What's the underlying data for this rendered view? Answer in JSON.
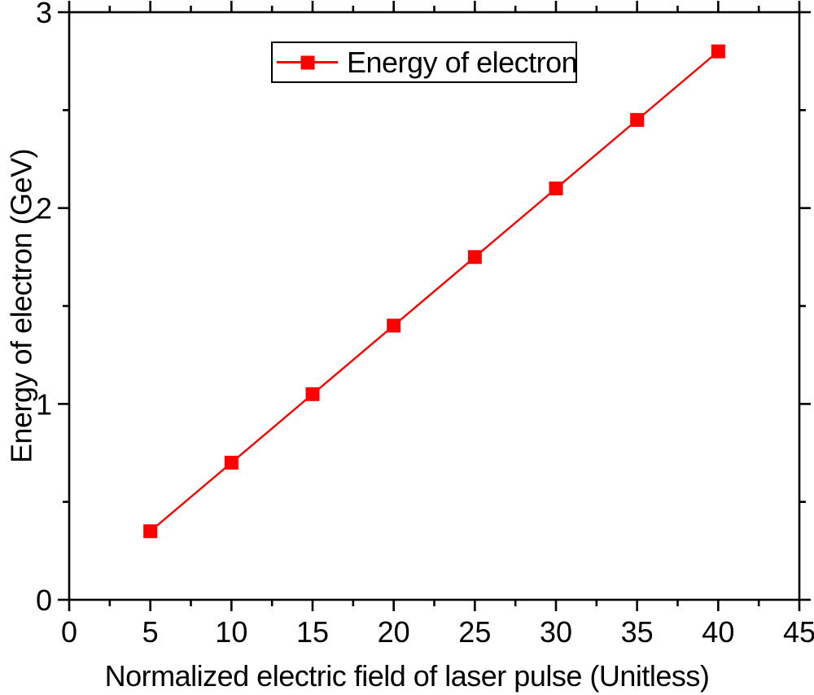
{
  "figure": {
    "background": "#FFFFFF",
    "axis_color": "#000000",
    "text_color": "#000000"
  },
  "chart_data": {
    "type": "line",
    "title": "",
    "xlabel": "Normalized electric field of laser pulse (Unitless)",
    "ylabel": "Energy of electron (GeV)",
    "xlim": [
      0,
      45
    ],
    "ylim": [
      0,
      3
    ],
    "x_major_ticks": [
      0,
      5,
      10,
      15,
      20,
      25,
      30,
      35,
      40,
      45
    ],
    "y_major_ticks": [
      0,
      1,
      2,
      3
    ],
    "x_minor_tick_step": 2.5,
    "y_minor_tick_step": 0.5,
    "grid": false,
    "tick_direction": "out",
    "legend": {
      "position": "top-center",
      "border": true,
      "entries": [
        "Energy of electron"
      ]
    },
    "series": [
      {
        "name": "Energy of electron",
        "color": "#FF0000",
        "marker": "square",
        "line_style": "solid",
        "x": [
          5,
          10,
          15,
          20,
          25,
          30,
          35,
          40
        ],
        "y": [
          0.35,
          0.7,
          1.05,
          1.4,
          1.75,
          2.1,
          2.45,
          2.8
        ]
      }
    ]
  }
}
